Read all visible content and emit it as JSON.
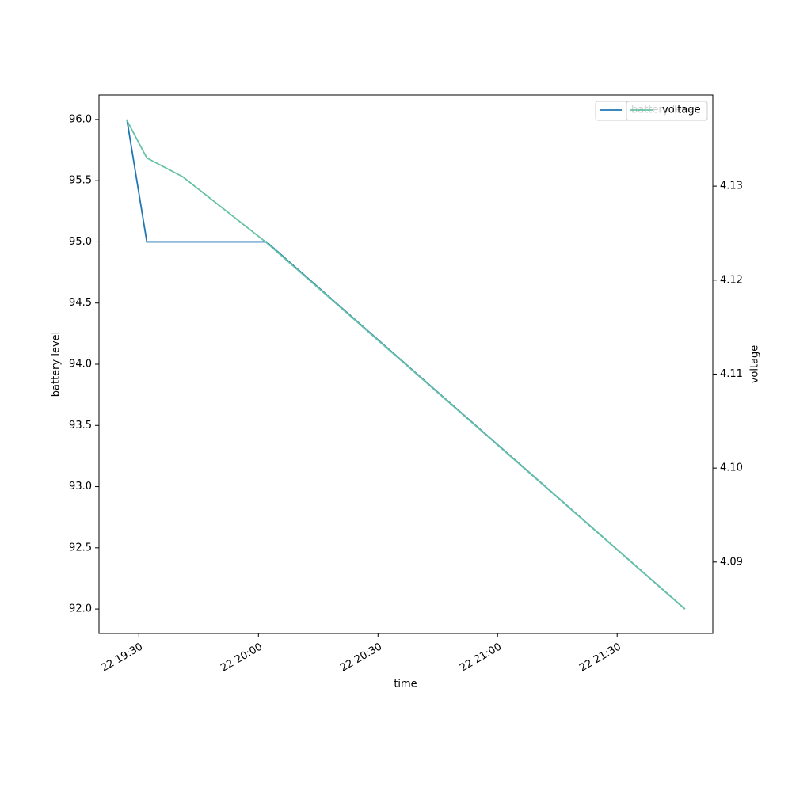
{
  "chart_data": {
    "type": "line",
    "x": [
      "22 19:27",
      "22 19:32",
      "22 19:41",
      "22 20:02",
      "22 21:47"
    ],
    "xlim": [
      "22 19:20",
      "22 21:54"
    ],
    "xticks": [
      "22 19:30",
      "22 20:00",
      "22 20:30",
      "22 21:00",
      "22 21:30"
    ],
    "xlabel": "time",
    "ylabel": "battery level",
    "y2label": "voltage",
    "ylim": [
      91.8,
      96.2
    ],
    "yticks": [
      {
        "value": 92,
        "label": "92.0"
      },
      {
        "value": 92.5,
        "label": "92.5"
      },
      {
        "value": 93,
        "label": "93.0"
      },
      {
        "value": 93.5,
        "label": "93.5"
      },
      {
        "value": 94,
        "label": "94.0"
      },
      {
        "value": 94.5,
        "label": "94.5"
      },
      {
        "value": 95,
        "label": "95.0"
      },
      {
        "value": 95.5,
        "label": "95.5"
      },
      {
        "value": 96,
        "label": "96.0"
      }
    ],
    "y2lim": [
      4.0824,
      4.1397
    ],
    "y2ticks": [
      {
        "value": 4.09,
        "label": "4.09"
      },
      {
        "value": 4.1,
        "label": "4.10"
      },
      {
        "value": 4.11,
        "label": "4.11"
      },
      {
        "value": 4.12,
        "label": "4.12"
      },
      {
        "value": 4.13,
        "label": "4.13"
      }
    ],
    "legend": "upper right",
    "series": [
      {
        "name": "battery level",
        "color": "#1f77b4",
        "values": [
          96,
          95,
          95,
          95,
          92
        ]
      },
      {
        "name": "voltage",
        "color": "#66c2a5",
        "axis": "y2",
        "values": [
          4.137,
          4.133,
          4.131,
          4.124,
          4.085
        ]
      }
    ]
  }
}
